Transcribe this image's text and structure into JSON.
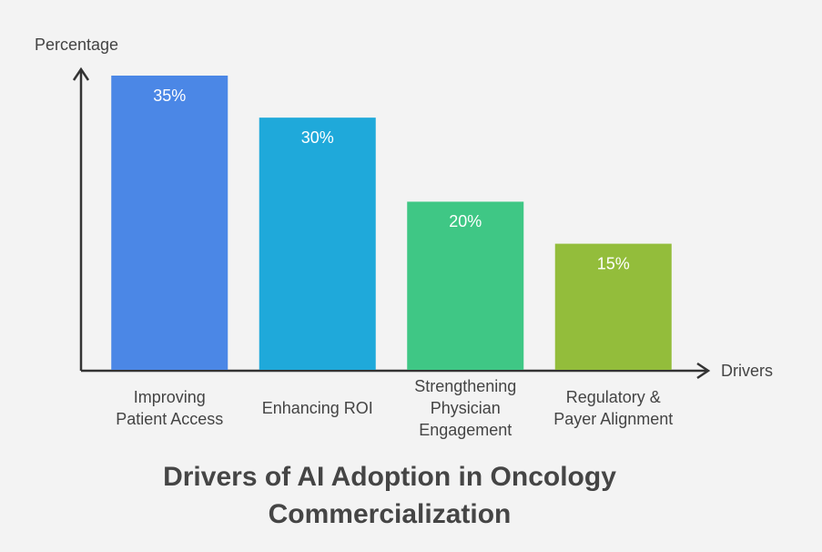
{
  "chart_data": {
    "type": "bar",
    "title": "Drivers of AI Adoption in Oncology Commercialization",
    "y_label": "Percentage",
    "x_label": "Drivers",
    "categories": [
      "Improving Patient Access",
      "Enhancing ROI",
      "Strengthening Physician Engagement",
      "Regulatory & Payer Alignment"
    ],
    "values": [
      35,
      30,
      20,
      15
    ],
    "value_labels": [
      "35%",
      "30%",
      "20%",
      "15%"
    ],
    "colors": [
      "#4b87e6",
      "#1fa9da",
      "#3fc785",
      "#93bd3b"
    ],
    "ylim": [
      0,
      35
    ]
  }
}
